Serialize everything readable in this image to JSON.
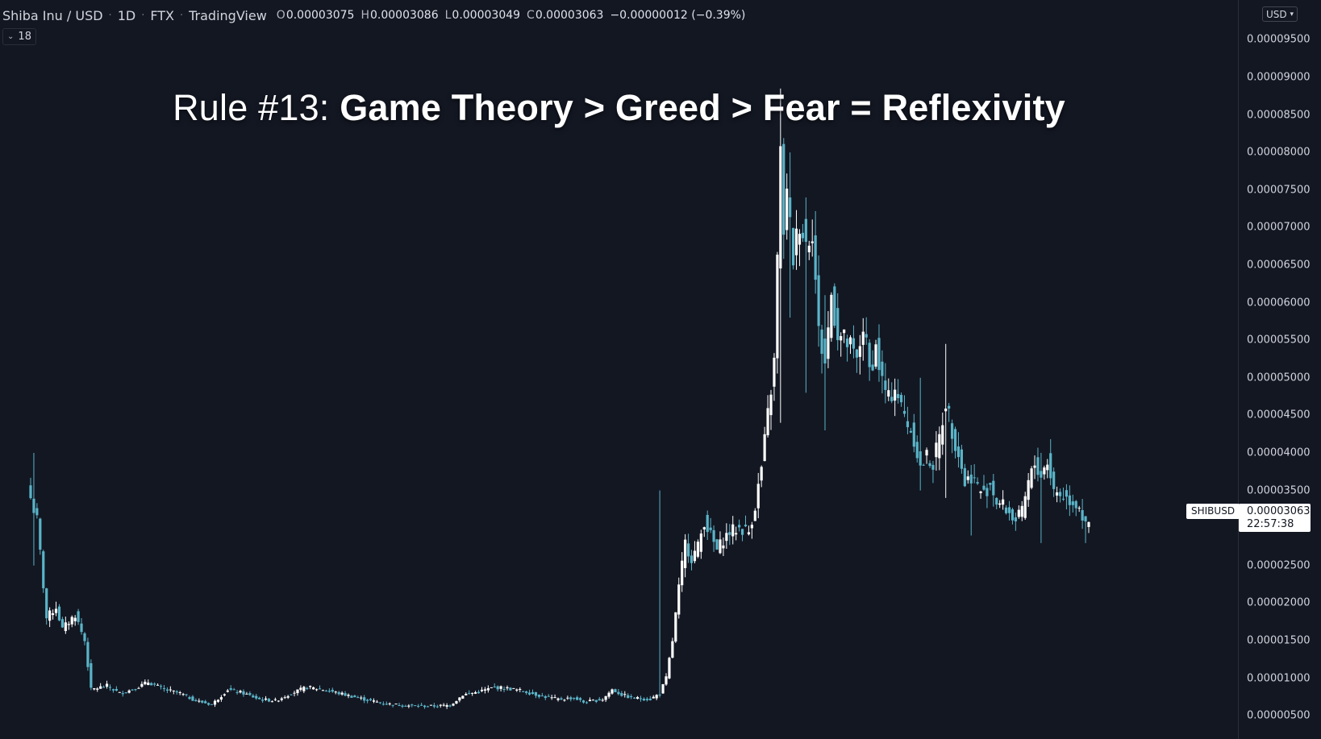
{
  "header": {
    "symbol": "Shiba Inu / USD",
    "interval": "1D",
    "exchange": "FTX",
    "source": "TradingView",
    "ohlc": {
      "o_label": "O",
      "o": "0.00003075",
      "h_label": "H",
      "h": "0.00003086",
      "l_label": "L",
      "l": "0.00003049",
      "c_label": "C",
      "c": "0.00003063",
      "change": "−0.00000012 (−0.39%)"
    },
    "indicator_count": "18",
    "currency": "USD"
  },
  "caption": {
    "prefix": "Rule #13: ",
    "bold": "Game Theory > Greed > Fear = Reflexivity"
  },
  "price_tag": {
    "symbol": "SHIBUSD",
    "price": "0.00003063",
    "countdown": "22:57:38"
  },
  "colors": {
    "background": "#131722",
    "up": "#ffffff",
    "down": "#5ab4c8",
    "axis_text": "#d1d4dc"
  },
  "chart_data": {
    "type": "candlestick",
    "ylim": [
      3.2e-06,
      9.9e-05
    ],
    "yticks": [
      "0.00000500",
      "0.00001000",
      "0.00001500",
      "0.00002000",
      "0.00002500",
      "0.00003000",
      "0.00003500",
      "0.00004000",
      "0.00004500",
      "0.00005000",
      "0.00005500",
      "0.00006000",
      "0.00006500",
      "0.00007000",
      "0.00007500",
      "0.00008000",
      "0.00008500",
      "0.00009000",
      "0.00009500"
    ],
    "series": [
      {
        "name": "SHIBUSD",
        "close_path": [
          [
            0,
            3.4e-05
          ],
          [
            2,
            3.1e-05
          ],
          [
            5,
            1.8e-05
          ],
          [
            8,
            1.95e-05
          ],
          [
            10,
            1.65e-05
          ],
          [
            14,
            1.85e-05
          ],
          [
            17,
            1.5e-05
          ],
          [
            19,
            8.5e-06
          ],
          [
            24,
            9e-06
          ],
          [
            28,
            8e-06
          ],
          [
            32,
            8.5e-06
          ],
          [
            37,
            9.5e-06
          ],
          [
            42,
            8.5e-06
          ],
          [
            47,
            8e-06
          ],
          [
            52,
            7e-06
          ],
          [
            57,
            6.5e-06
          ],
          [
            62,
            8.5e-06
          ],
          [
            67,
            8e-06
          ],
          [
            72,
            7.2e-06
          ],
          [
            77,
            7e-06
          ],
          [
            82,
            8e-06
          ],
          [
            87,
            8.8e-06
          ],
          [
            92,
            8.5e-06
          ],
          [
            97,
            8e-06
          ],
          [
            102,
            7.5e-06
          ],
          [
            107,
            7e-06
          ],
          [
            112,
            6.6e-06
          ],
          [
            117,
            6.4e-06
          ],
          [
            122,
            6.3e-06
          ],
          [
            127,
            6.3e-06
          ],
          [
            132,
            6.4e-06
          ],
          [
            136,
            7.8e-06
          ],
          [
            141,
            8.2e-06
          ],
          [
            146,
            8.8e-06
          ],
          [
            151,
            8.6e-06
          ],
          [
            156,
            8.2e-06
          ],
          [
            161,
            7.6e-06
          ],
          [
            166,
            7.2e-06
          ],
          [
            171,
            7.4e-06
          ],
          [
            174,
            6.8e-06
          ],
          [
            177,
            7e-06
          ],
          [
            180,
            7.2e-06
          ],
          [
            183,
            8.5e-06
          ],
          [
            186,
            7.8e-06
          ],
          [
            189,
            7.4e-06
          ],
          [
            192,
            7.3e-06
          ],
          [
            195,
            7.2e-06
          ],
          [
            198,
            8e-06
          ],
          [
            200,
            1e-05
          ],
          [
            202,
            1.5e-05
          ],
          [
            204,
            2.2e-05
          ],
          [
            206,
            2.8e-05
          ],
          [
            208,
            2.6e-05
          ],
          [
            210,
            2.75e-05
          ],
          [
            212,
            3.1e-05
          ],
          [
            214,
            2.9e-05
          ],
          [
            216,
            2.7e-05
          ],
          [
            218,
            2.85e-05
          ],
          [
            220,
            2.95e-05
          ],
          [
            223,
            3e-05
          ],
          [
            226,
            2.95e-05
          ],
          [
            228,
            3.3e-05
          ],
          [
            230,
            3.8e-05
          ],
          [
            232,
            4.5e-05
          ],
          [
            234,
            5.2e-05
          ],
          [
            236,
            7.95e-05
          ],
          [
            237,
            7e-05
          ],
          [
            238,
            7.4e-05
          ],
          [
            240,
            6.6e-05
          ],
          [
            242,
            7.1e-05
          ],
          [
            244,
            6.8e-05
          ],
          [
            246,
            7e-05
          ],
          [
            248,
            5.6e-05
          ],
          [
            250,
            5.2e-05
          ],
          [
            252,
            6.1e-05
          ],
          [
            254,
            5.6e-05
          ],
          [
            256,
            5.5e-05
          ],
          [
            258,
            5.4e-05
          ],
          [
            260,
            5.2e-05
          ],
          [
            262,
            5.7e-05
          ],
          [
            264,
            5.1e-05
          ],
          [
            266,
            5.4e-05
          ],
          [
            268,
            4.95e-05
          ],
          [
            270,
            4.7e-05
          ],
          [
            272,
            4.9e-05
          ],
          [
            274,
            4.6e-05
          ],
          [
            276,
            4.4e-05
          ],
          [
            278,
            4.2e-05
          ],
          [
            280,
            3.8e-05
          ],
          [
            282,
            3.95e-05
          ],
          [
            284,
            3.85e-05
          ],
          [
            286,
            4.2e-05
          ],
          [
            288,
            4.7e-05
          ],
          [
            290,
            4.3e-05
          ],
          [
            292,
            4e-05
          ],
          [
            294,
            3.6e-05
          ],
          [
            296,
            3.7e-05
          ],
          [
            298,
            3.55e-05
          ],
          [
            300,
            3.45e-05
          ],
          [
            302,
            3.6e-05
          ],
          [
            304,
            3.35e-05
          ],
          [
            306,
            3.3e-05
          ],
          [
            308,
            3.2e-05
          ],
          [
            310,
            3.1e-05
          ],
          [
            312,
            3.2e-05
          ],
          [
            314,
            3.6e-05
          ],
          [
            316,
            3.85e-05
          ],
          [
            318,
            3.7e-05
          ],
          [
            320,
            3.9e-05
          ],
          [
            322,
            3.5e-05
          ],
          [
            324,
            3.45e-05
          ],
          [
            326,
            3.4e-05
          ],
          [
            328,
            3.35e-05
          ],
          [
            330,
            3.3e-05
          ],
          [
            332,
            3e-05
          ],
          [
            333,
            3.06e-05
          ]
        ],
        "spikes": [
          {
            "day": 1,
            "high": 4e-05,
            "low": 2.5e-05
          },
          {
            "day": 198,
            "high": 3.5e-05,
            "low": 1.8e-05
          },
          {
            "day": 236,
            "high": 8.85e-05,
            "low": 4.4e-05
          },
          {
            "day": 239,
            "high": 8e-05,
            "low": 5.8e-05
          },
          {
            "day": 244,
            "high": 7.4e-05,
            "low": 4.8e-05
          },
          {
            "day": 250,
            "high": 6.1e-05,
            "low": 4.3e-05
          },
          {
            "day": 280,
            "high": 5e-05,
            "low": 3.5e-05
          },
          {
            "day": 288,
            "high": 5.45e-05,
            "low": 3.4e-05
          },
          {
            "day": 296,
            "high": 3.8e-05,
            "low": 2.9e-05
          },
          {
            "day": 318,
            "high": 4e-05,
            "low": 2.8e-05
          },
          {
            "day": 332,
            "high": 3.1e-05,
            "low": 2.8e-05
          }
        ]
      }
    ]
  }
}
